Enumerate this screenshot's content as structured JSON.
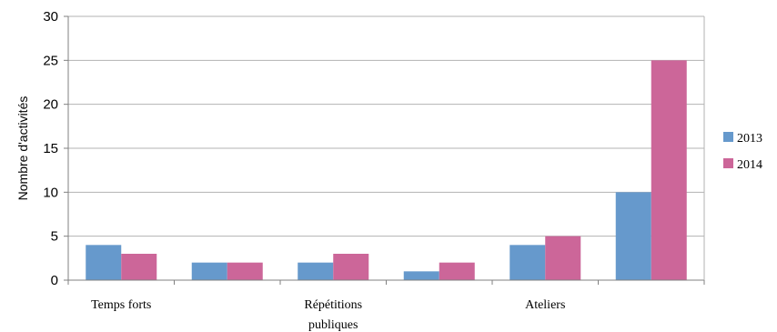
{
  "chart_data": {
    "type": "bar",
    "categories": [
      "Temps forts",
      "",
      "Répétitions publiques",
      "",
      "Ateliers",
      ""
    ],
    "category_lines": [
      [
        "Temps forts"
      ],
      [],
      [
        "Répétitions",
        "publiques"
      ],
      [],
      [
        "Ateliers"
      ],
      []
    ],
    "series": [
      {
        "name": "2013",
        "values": [
          4,
          2,
          2,
          1,
          4,
          10
        ],
        "color": "#6699cc"
      },
      {
        "name": "2014",
        "values": [
          3,
          2,
          3,
          2,
          5,
          25
        ],
        "color": "#cc6699"
      }
    ],
    "ylabel": "Nombre d'activités",
    "ylim": [
      0,
      30
    ],
    "yticks": [
      0,
      5,
      10,
      15,
      20,
      25,
      30
    ],
    "grid": true,
    "legend_position": "right"
  }
}
